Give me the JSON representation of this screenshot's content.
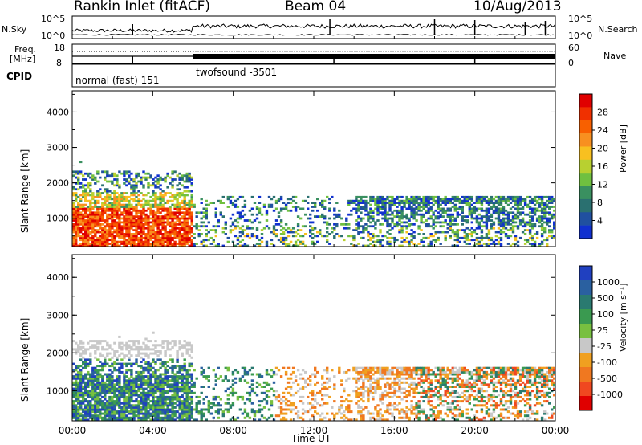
{
  "header": {
    "station": "Rankin Inlet (fitACF)",
    "beam": "Beam 04",
    "date": "10/Aug/2013"
  },
  "sky_panel": {
    "left_label": "N.Sky",
    "right_label": "N.Search",
    "left_ticks": [
      "10^5",
      "10^0"
    ],
    "right_ticks": [
      "10^5",
      "10^0"
    ]
  },
  "freq_panel": {
    "left_label_1": "Freq.",
    "left_label_2": "[MHz]",
    "right_label": "Nave",
    "left_ticks": [
      "18",
      "8"
    ],
    "right_ticks": [
      "60",
      "0"
    ]
  },
  "cpid": {
    "label": "CPID",
    "segments": [
      {
        "name": "normal (fast) 151",
        "start_hour": 0,
        "end_hour": 6
      },
      {
        "name": "twofsound -3501",
        "start_hour": 6,
        "end_hour": 24
      }
    ]
  },
  "power_colorbar": {
    "label": "Power [dB]",
    "ticks": [
      "28",
      "24",
      "20",
      "16",
      "12",
      "8",
      "4"
    ],
    "colors": [
      "#e00000",
      "#f03000",
      "#f86000",
      "#f89020",
      "#f8c020",
      "#b8d030",
      "#70c040",
      "#3a9060",
      "#2a7070",
      "#2050a0",
      "#1030d0"
    ]
  },
  "velocity_colorbar": {
    "label": "Velocity [m s⁻¹]",
    "ticks": [
      "1000",
      "500",
      "100",
      "25",
      "-25",
      "-100",
      "-500",
      "-1000"
    ],
    "colors": [
      "#2040c0",
      "#2a60a0",
      "#2a7a70",
      "#3a9a50",
      "#78c040",
      "#c8c8c8",
      "#f0a020",
      "#f07820",
      "#f04820",
      "#e00000"
    ]
  },
  "chart_data": [
    {
      "type": "heatmap",
      "name": "power",
      "ylabel": "Slant Range [km]",
      "yticks": [
        "4000",
        "3000",
        "2000",
        "1000"
      ],
      "ylim": [
        200,
        4600
      ],
      "xlim_hours": [
        0,
        24
      ],
      "xticks": [
        "00:00",
        "04:00",
        "08:00",
        "12:00",
        "16:00",
        "20:00",
        "00:00"
      ]
    },
    {
      "type": "heatmap",
      "name": "velocity",
      "ylabel": "Slant Range [km]",
      "yticks": [
        "4000",
        "3000",
        "2000",
        "1000"
      ],
      "ylim": [
        200,
        4600
      ],
      "xlim_hours": [
        0,
        24
      ],
      "xticks": [
        "00:00",
        "04:00",
        "08:00",
        "12:00",
        "16:00",
        "20:00",
        "00:00"
      ],
      "xlabel": "Time UT"
    }
  ]
}
